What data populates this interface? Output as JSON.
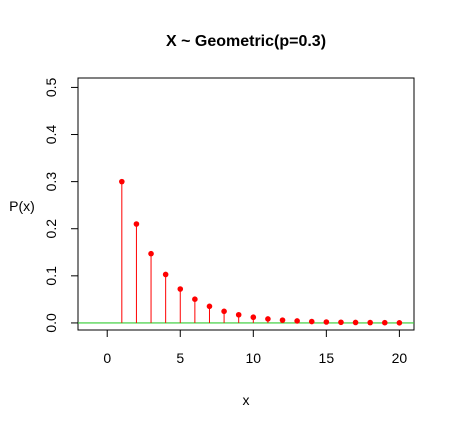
{
  "chart_data": {
    "type": "scatter",
    "title": "X ~ Geometric(p=0.3)",
    "xlabel": "x",
    "ylabel": "P(x)",
    "xlim": [
      -2,
      21
    ],
    "ylim": [
      -0.015,
      0.52
    ],
    "x_ticks": [
      "0",
      "5",
      "10",
      "15",
      "20"
    ],
    "y_ticks": [
      "0.0",
      "0.1",
      "0.2",
      "0.3",
      "0.4",
      "0.5"
    ],
    "grid": false,
    "x": [
      1,
      2,
      3,
      4,
      5,
      6,
      7,
      8,
      9,
      10,
      11,
      12,
      13,
      14,
      15,
      16,
      17,
      18,
      19,
      20
    ],
    "series": [
      {
        "values": [
          0.3,
          0.21,
          0.147,
          0.1029,
          0.072,
          0.0504,
          0.0353,
          0.0247,
          0.0173,
          0.0121,
          0.0085,
          0.0059,
          0.0042,
          0.0029,
          0.002,
          0.0014,
          0.001,
          0.0007,
          0.0005,
          0.0003
        ]
      }
    ],
    "reference_line": {
      "y": 0,
      "color": "#33cc33"
    },
    "colors": {
      "points": "#ff0000",
      "stems": "#ff0000",
      "baseline": "#33cc33",
      "frame": "#000000"
    }
  }
}
